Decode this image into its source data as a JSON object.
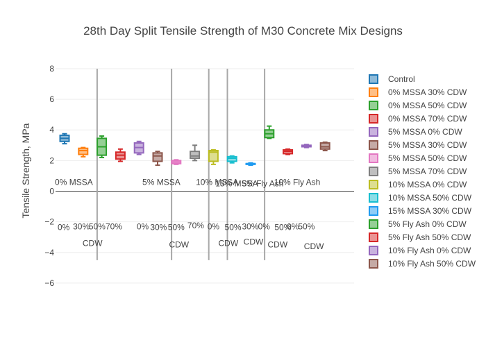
{
  "chart_data": {
    "type": "box",
    "title": "28th Day Split Tensile Strength of M30 Concrete Mix Designs",
    "xlabel": "",
    "ylabel": "Tensile Strength, MPa",
    "ylim": [
      -6.8,
      9.0
    ],
    "yticks": [
      "8",
      "6",
      "4",
      "2",
      "0",
      "−2",
      "−4",
      "−6"
    ],
    "ytick_values": [
      8,
      6,
      4,
      2,
      0,
      -2,
      -4,
      -6
    ],
    "grid": true,
    "legend_position": "right",
    "separators": [
      1.75,
      5.75,
      7.75,
      8.75,
      10.75
    ],
    "series": [
      {
        "name": "Control",
        "color": "#1f77b4",
        "x": 0,
        "min": 3.1,
        "q1": 3.25,
        "median": 3.45,
        "q3": 3.65,
        "max": 3.75
      },
      {
        "name": "0% MSSA 30% CDW",
        "color": "#ff7f0e",
        "x": 1,
        "min": 2.25,
        "q1": 2.4,
        "median": 2.65,
        "q3": 2.8,
        "max": 2.85
      },
      {
        "name": "0% MSSA 50% CDW",
        "color": "#2ca02c",
        "x": 2,
        "min": 2.2,
        "q1": 2.35,
        "median": 2.9,
        "q3": 3.45,
        "max": 3.6
      },
      {
        "name": "0% MSSA 70% CDW",
        "color": "#d62728",
        "x": 3,
        "min": 1.95,
        "q1": 2.1,
        "median": 2.35,
        "q3": 2.55,
        "max": 2.75
      },
      {
        "name": "5% MSSA 0% CDW",
        "color": "#9467bd",
        "x": 4,
        "min": 2.4,
        "q1": 2.5,
        "median": 2.85,
        "q3": 3.15,
        "max": 3.25
      },
      {
        "name": "5% MSSA 30% CDW",
        "color": "#8c564b",
        "x": 5,
        "min": 1.7,
        "q1": 1.95,
        "median": 2.3,
        "q3": 2.5,
        "max": 2.6
      },
      {
        "name": "5% MSSA 50% CDW",
        "color": "#e377c2",
        "x": 6,
        "min": 1.75,
        "q1": 1.8,
        "median": 1.9,
        "q3": 2.0,
        "max": 2.05
      },
      {
        "name": "5% MSSA 70% CDW",
        "color": "#7f7f7f",
        "x": 7,
        "min": 2.0,
        "q1": 2.15,
        "median": 2.3,
        "q3": 2.6,
        "max": 3.0
      },
      {
        "name": "10% MSSA 0% CDW",
        "color": "#bcbd22",
        "x": 8,
        "min": 1.75,
        "q1": 1.95,
        "median": 2.55,
        "q3": 2.65,
        "max": 2.7
      },
      {
        "name": "10% MSSA 50% CDW",
        "color": "#17becf",
        "x": 9,
        "min": 1.85,
        "q1": 1.95,
        "median": 2.15,
        "q3": 2.25,
        "max": 2.3
      },
      {
        "name": "15% MSSA 30% CDW",
        "color": "#1f9bf0",
        "x": 10,
        "min": 1.7,
        "q1": 1.75,
        "median": 1.8,
        "q3": 1.8,
        "max": 1.85
      },
      {
        "name": "5% Fly Ash 0% CDW",
        "color": "#2ca02c",
        "x": 11,
        "min": 3.45,
        "q1": 3.5,
        "median": 3.75,
        "q3": 4.0,
        "max": 4.25
      },
      {
        "name": "5% Fly Ash 50% CDW",
        "color": "#d62728",
        "x": 12,
        "min": 2.4,
        "q1": 2.45,
        "median": 2.6,
        "q3": 2.7,
        "max": 2.75
      },
      {
        "name": "10% Fly Ash 0% CDW",
        "color": "#9467bd",
        "x": 13,
        "min": 2.85,
        "q1": 2.9,
        "median": 2.95,
        "q3": 3.0,
        "max": 3.05
      },
      {
        "name": "10% Fly Ash 50% CDW",
        "color": "#8c564b",
        "x": 14,
        "min": 2.65,
        "q1": 2.75,
        "median": 2.9,
        "q3": 3.15,
        "max": 3.2
      }
    ],
    "annotations": [
      {
        "text": "0% MSSA",
        "x": 0.5,
        "y": 0.6
      },
      {
        "text": "5% MSSA",
        "x": 5.2,
        "y": 0.6
      },
      {
        "text": "10% MSSA",
        "x": 8.2,
        "y": 0.6
      },
      {
        "text": "15% MSSA",
        "x": 9.25,
        "y": 0.5
      },
      {
        "text": "5% Fly Ash",
        "x": 10.65,
        "y": 0.5
      },
      {
        "text": "10% Fly Ash",
        "x": 12.5,
        "y": 0.6
      },
      {
        "text": "0%",
        "x": -0.05,
        "y": -2.35
      },
      {
        "text": "30%",
        "x": 0.9,
        "y": -2.3
      },
      {
        "text": "50%",
        "x": 1.75,
        "y": -2.3
      },
      {
        "text": "70%",
        "x": 2.65,
        "y": -2.3
      },
      {
        "text": "0%",
        "x": 4.2,
        "y": -2.3
      },
      {
        "text": "30%",
        "x": 5.05,
        "y": -2.35
      },
      {
        "text": "50%",
        "x": 6.0,
        "y": -2.35
      },
      {
        "text": "70%",
        "x": 7.05,
        "y": -2.25
      },
      {
        "text": "0%",
        "x": 8.0,
        "y": -2.3
      },
      {
        "text": "50%",
        "x": 9.05,
        "y": -2.35
      },
      {
        "text": "30%",
        "x": 9.98,
        "y": -2.3
      },
      {
        "text": "0%",
        "x": 10.72,
        "y": -2.3
      },
      {
        "text": "50%",
        "x": 11.73,
        "y": -2.35
      },
      {
        "text": "0%",
        "x": 12.27,
        "y": -2.3
      },
      {
        "text": "50%",
        "x": 13.0,
        "y": -2.3
      },
      {
        "text": "CDW",
        "x": 1.5,
        "y": -3.4
      },
      {
        "text": "CDW",
        "x": 6.15,
        "y": -3.5
      },
      {
        "text": "CDW",
        "x": 8.8,
        "y": -3.4
      },
      {
        "text": "CDW",
        "x": 10.15,
        "y": -3.3
      },
      {
        "text": "CDW",
        "x": 11.45,
        "y": -3.5
      },
      {
        "text": "CDW",
        "x": 13.4,
        "y": -3.6
      }
    ]
  }
}
